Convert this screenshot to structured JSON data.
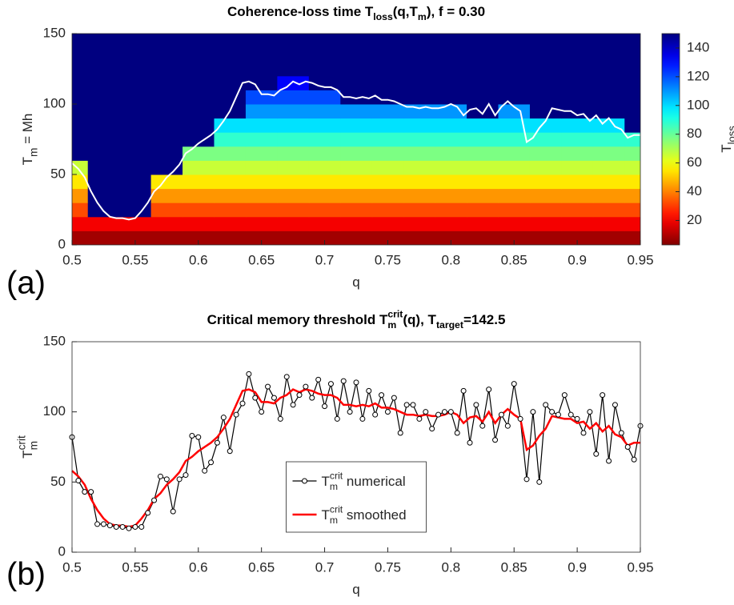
{
  "chart_data": [
    {
      "type": "heatmap",
      "title": [
        {
          "text": "Coherence-loss time T"
        },
        {
          "text": "loss",
          "sub": true
        },
        {
          "text": "(q,T"
        },
        {
          "text": "m",
          "sub": true
        },
        {
          "text": "), f = 0.30"
        }
      ],
      "xlabel": [
        {
          "text": "q"
        }
      ],
      "ylabel": [
        {
          "text": "T"
        },
        {
          "text": "m",
          "sub": true
        },
        {
          "text": " = Mh"
        }
      ],
      "panel_label": "(a)",
      "xlim": [
        0.5,
        0.95
      ],
      "xticks": [
        0.5,
        0.55,
        0.6,
        0.65,
        0.7,
        0.75,
        0.8,
        0.85,
        0.9,
        0.95
      ],
      "ylim": [
        0,
        150
      ],
      "yticks": [
        0,
        50,
        100,
        150
      ],
      "colormap": "jet",
      "reverse_colormap": true,
      "clim": [
        3,
        150
      ],
      "colorbar_ticks": [
        20,
        40,
        60,
        80,
        100,
        120,
        140
      ],
      "colorbar_label": [
        {
          "text": "T"
        },
        {
          "text": "loss",
          "sub": true
        }
      ],
      "heatmap": {
        "x": [
          0.5,
          0.525,
          0.55,
          0.575,
          0.6,
          0.625,
          0.65,
          0.675,
          0.7,
          0.725,
          0.75,
          0.775,
          0.8,
          0.825,
          0.85,
          0.875,
          0.9,
          0.925,
          0.95
        ],
        "y": [
          5,
          15,
          25,
          35,
          45,
          55,
          65,
          75,
          85,
          95,
          105,
          115,
          125,
          135,
          145
        ],
        "values": [
          [
            8,
            8,
            8,
            8,
            8,
            8,
            8,
            8,
            8,
            8,
            8,
            8,
            8,
            8,
            8,
            8,
            8,
            8,
            8
          ],
          [
            20,
            20,
            20,
            20,
            20,
            20,
            20,
            20,
            20,
            20,
            20,
            20,
            20,
            20,
            20,
            20,
            20,
            20,
            20
          ],
          [
            32,
            150,
            150,
            32,
            32,
            32,
            32,
            32,
            32,
            32,
            32,
            32,
            32,
            32,
            32,
            32,
            32,
            32,
            32
          ],
          [
            43,
            150,
            150,
            43,
            43,
            43,
            43,
            43,
            43,
            43,
            43,
            43,
            43,
            43,
            43,
            43,
            43,
            43,
            43
          ],
          [
            55,
            150,
            150,
            55,
            55,
            55,
            55,
            55,
            55,
            55,
            55,
            55,
            55,
            55,
            55,
            55,
            55,
            55,
            55
          ],
          [
            66,
            150,
            150,
            150,
            66,
            66,
            66,
            66,
            66,
            66,
            66,
            66,
            66,
            66,
            66,
            66,
            66,
            66,
            66
          ],
          [
            150,
            150,
            150,
            150,
            77,
            77,
            77,
            77,
            77,
            77,
            77,
            77,
            77,
            77,
            77,
            77,
            77,
            77,
            77
          ],
          [
            150,
            150,
            150,
            150,
            150,
            88,
            88,
            88,
            88,
            88,
            88,
            88,
            88,
            88,
            88,
            88,
            88,
            88,
            88
          ],
          [
            150,
            150,
            150,
            150,
            150,
            99,
            99,
            99,
            99,
            99,
            99,
            99,
            99,
            99,
            99,
            99,
            99,
            99,
            150
          ],
          [
            150,
            150,
            150,
            150,
            150,
            150,
            110,
            110,
            110,
            110,
            110,
            110,
            110,
            150,
            110,
            150,
            150,
            150,
            150
          ],
          [
            150,
            150,
            150,
            150,
            150,
            150,
            121,
            121,
            121,
            150,
            150,
            150,
            150,
            150,
            150,
            150,
            150,
            150,
            150
          ],
          [
            150,
            150,
            150,
            150,
            150,
            150,
            150,
            132,
            150,
            150,
            150,
            150,
            150,
            150,
            150,
            150,
            150,
            150,
            150
          ],
          [
            150,
            150,
            150,
            150,
            150,
            150,
            150,
            150,
            150,
            150,
            150,
            150,
            150,
            150,
            150,
            150,
            150,
            150,
            150
          ],
          [
            150,
            150,
            150,
            150,
            150,
            150,
            150,
            150,
            150,
            150,
            150,
            150,
            150,
            150,
            150,
            150,
            150,
            150,
            150
          ],
          [
            150,
            150,
            150,
            150,
            150,
            150,
            150,
            150,
            150,
            150,
            150,
            150,
            150,
            150,
            150,
            150,
            150,
            150,
            150
          ]
        ]
      },
      "x": [
        0.5,
        0.505,
        0.51,
        0.515,
        0.52,
        0.525,
        0.53,
        0.535,
        0.54,
        0.545,
        0.55,
        0.555,
        0.56,
        0.565,
        0.57,
        0.575,
        0.58,
        0.585,
        0.59,
        0.595,
        0.6,
        0.605,
        0.61,
        0.615,
        0.62,
        0.625,
        0.63,
        0.635,
        0.64,
        0.645,
        0.65,
        0.655,
        0.66,
        0.665,
        0.67,
        0.675,
        0.68,
        0.685,
        0.69,
        0.695,
        0.7,
        0.705,
        0.71,
        0.715,
        0.72,
        0.725,
        0.73,
        0.735,
        0.74,
        0.745,
        0.75,
        0.755,
        0.76,
        0.765,
        0.77,
        0.775,
        0.78,
        0.785,
        0.79,
        0.795,
        0.8,
        0.805,
        0.81,
        0.815,
        0.82,
        0.825,
        0.83,
        0.835,
        0.84,
        0.845,
        0.85,
        0.855,
        0.86,
        0.865,
        0.87,
        0.875,
        0.88,
        0.885,
        0.89,
        0.895,
        0.9,
        0.905,
        0.91,
        0.915,
        0.92,
        0.925,
        0.93,
        0.935,
        0.94,
        0.945,
        0.95
      ],
      "series": [
        {
          "color": "#ffffff",
          "values": [
            58,
            54,
            48,
            38,
            30,
            24,
            20,
            19,
            19,
            18,
            19,
            24,
            30,
            38,
            42,
            48,
            52,
            57,
            65,
            68,
            72,
            75,
            78,
            82,
            88,
            95,
            105,
            115,
            116,
            114,
            107,
            107,
            106,
            110,
            112,
            116,
            114,
            116,
            115,
            113,
            112,
            112,
            110,
            105,
            105,
            104,
            105,
            104,
            106,
            103,
            103,
            102,
            100,
            98,
            98,
            97,
            98,
            97,
            97,
            98,
            100,
            98,
            92,
            96,
            97,
            93,
            100,
            92,
            98,
            102,
            98,
            95,
            73,
            76,
            83,
            88,
            97,
            96,
            95,
            95,
            92,
            93,
            88,
            92,
            86,
            90,
            84,
            82,
            76,
            78,
            78
          ]
        }
      ]
    },
    {
      "type": "line",
      "title": [
        {
          "text": "Critical memory threshold T"
        },
        {
          "text": "crit",
          "sup": true
        },
        {
          "text": "m",
          "sub": true
        },
        {
          "text": "(q), T"
        },
        {
          "text": "target",
          "sub": true
        },
        {
          "text": "=142.5"
        }
      ],
      "xlabel": [
        {
          "text": "q"
        }
      ],
      "ylabel": [
        {
          "text": "T"
        },
        {
          "text": "crit",
          "sup": true
        },
        {
          "text": "m",
          "sub": true
        }
      ],
      "panel_label": "(b)",
      "xlim": [
        0.5,
        0.95
      ],
      "xticks": [
        0.5,
        0.55,
        0.6,
        0.65,
        0.7,
        0.75,
        0.8,
        0.85,
        0.9,
        0.95
      ],
      "ylim": [
        0,
        150
      ],
      "yticks": [
        0,
        50,
        100,
        150
      ],
      "legend": "lower center",
      "x": [
        0.5,
        0.505,
        0.51,
        0.515,
        0.52,
        0.525,
        0.53,
        0.535,
        0.54,
        0.545,
        0.55,
        0.555,
        0.56,
        0.565,
        0.57,
        0.575,
        0.58,
        0.585,
        0.59,
        0.595,
        0.6,
        0.605,
        0.61,
        0.615,
        0.62,
        0.625,
        0.63,
        0.635,
        0.64,
        0.645,
        0.65,
        0.655,
        0.66,
        0.665,
        0.67,
        0.675,
        0.68,
        0.685,
        0.69,
        0.695,
        0.7,
        0.705,
        0.71,
        0.715,
        0.72,
        0.725,
        0.73,
        0.735,
        0.74,
        0.745,
        0.75,
        0.755,
        0.76,
        0.765,
        0.77,
        0.775,
        0.78,
        0.785,
        0.79,
        0.795,
        0.8,
        0.805,
        0.81,
        0.815,
        0.82,
        0.825,
        0.83,
        0.835,
        0.84,
        0.845,
        0.85,
        0.855,
        0.86,
        0.865,
        0.87,
        0.875,
        0.88,
        0.885,
        0.89,
        0.895,
        0.9,
        0.905,
        0.91,
        0.915,
        0.92,
        0.925,
        0.93,
        0.935,
        0.94,
        0.945,
        0.95
      ],
      "series": [
        {
          "name": [
            {
              "text": "T"
            },
            {
              "text": "crit",
              "sup": true
            },
            {
              "text": "m",
              "sub": true
            },
            {
              "text": " numerical"
            }
          ],
          "color": "#000000",
          "marker": "o",
          "values": [
            82,
            51,
            43,
            43,
            20,
            20,
            19,
            18,
            18,
            17,
            18,
            18,
            28,
            37,
            54,
            52,
            29,
            52,
            55,
            83,
            82,
            58,
            64,
            78,
            96,
            72,
            98,
            106,
            127,
            110,
            100,
            118,
            110,
            95,
            125,
            105,
            112,
            118,
            110,
            123,
            104,
            120,
            95,
            122,
            100,
            121,
            95,
            115,
            98,
            112,
            100,
            110,
            85,
            105,
            105,
            95,
            100,
            88,
            98,
            100,
            100,
            85,
            115,
            78,
            105,
            90,
            116,
            80,
            98,
            90,
            120,
            95,
            52,
            100,
            50,
            105,
            100,
            98,
            112,
            98,
            95,
            85,
            100,
            70,
            112,
            65,
            105,
            85,
            75,
            66,
            90
          ]
        },
        {
          "name": [
            {
              "text": "T"
            },
            {
              "text": "crit",
              "sup": true
            },
            {
              "text": "m",
              "sub": true
            },
            {
              "text": " smoothed"
            }
          ],
          "color": "#ff0000",
          "values": [
            58,
            54,
            48,
            38,
            30,
            24,
            20,
            19,
            19,
            18,
            19,
            24,
            30,
            38,
            42,
            48,
            52,
            57,
            65,
            68,
            72,
            75,
            78,
            82,
            88,
            95,
            105,
            115,
            116,
            114,
            107,
            107,
            106,
            110,
            112,
            116,
            114,
            116,
            115,
            113,
            112,
            112,
            110,
            105,
            105,
            104,
            105,
            104,
            106,
            103,
            103,
            102,
            100,
            98,
            98,
            97,
            98,
            97,
            97,
            98,
            100,
            98,
            92,
            96,
            97,
            93,
            100,
            92,
            98,
            102,
            98,
            95,
            73,
            76,
            83,
            88,
            97,
            96,
            95,
            95,
            92,
            93,
            88,
            92,
            86,
            90,
            84,
            82,
            76,
            78,
            78
          ]
        }
      ]
    }
  ]
}
